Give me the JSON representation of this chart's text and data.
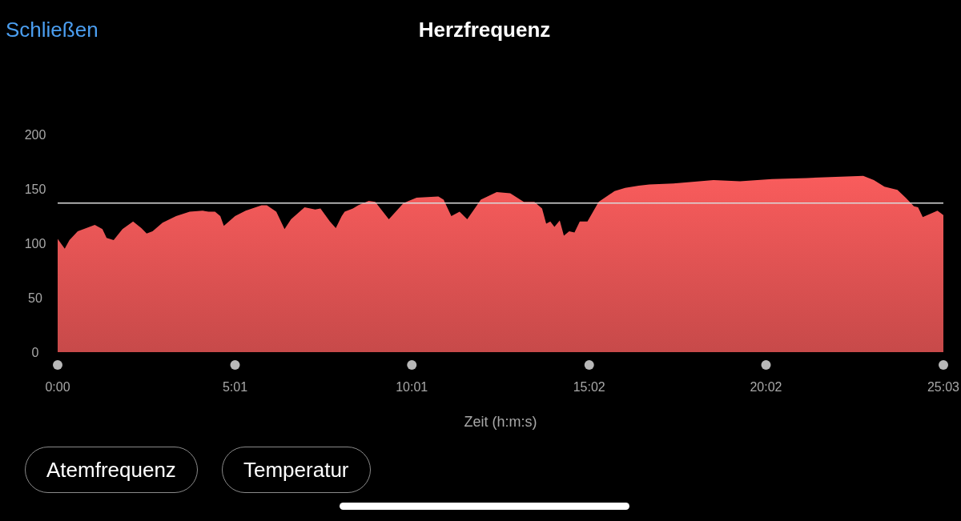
{
  "chart_data": {
    "type": "area",
    "title": "Herzfrequenz",
    "xlabel": "Zeit (h:m:s)",
    "annotations": [
      "Schließen",
      "Atemfrequenz",
      "Temperatur"
    ],
    "x": [
      0,
      12,
      20,
      34,
      63,
      76,
      83,
      95,
      110,
      128,
      142,
      151,
      161,
      178,
      201,
      224,
      246,
      256,
      267,
      276,
      282,
      301,
      319,
      346,
      355,
      371,
      385,
      396,
      419,
      437,
      446,
      462,
      472,
      482,
      487,
      501,
      510,
      528,
      539,
      562,
      587,
      609,
      646,
      655,
      668,
      682,
      695,
      718,
      745,
      768,
      791,
      809,
      822,
      829,
      836,
      843,
      852,
      859,
      868,
      877,
      886,
      899,
      918,
      945,
      963,
      986,
      1004,
      1045,
      1113,
      1158,
      1212,
      1271,
      1367,
      1385,
      1403,
      1425,
      1439,
      1453,
      1460,
      1468,
      1493,
      1503
    ],
    "series": [
      {
        "color": "#f95c5c",
        "values": [
          104,
          95,
          103,
          111,
          117,
          113,
          105,
          103,
          113,
          120,
          114,
          109,
          111,
          119,
          125,
          129,
          130,
          129,
          129,
          125,
          116,
          125,
          130,
          135,
          135,
          129,
          113,
          122,
          133,
          131,
          132,
          120,
          114,
          125,
          129,
          132,
          135,
          139,
          138,
          122,
          137,
          142,
          143,
          140,
          125,
          129,
          122,
          140,
          147,
          146,
          138,
          138,
          132,
          118,
          120,
          115,
          121,
          107,
          111,
          110,
          120,
          120,
          138,
          148,
          151,
          153,
          154,
          155,
          158,
          157,
          159,
          160,
          162,
          158,
          152,
          149,
          142,
          134,
          133,
          124,
          130,
          126
        ]
      }
    ],
    "xlim": [
      0,
      1503
    ],
    "xticks": [
      {
        "value": 0,
        "label": "0:00"
      },
      {
        "value": 301,
        "label": "5:01"
      },
      {
        "value": 601,
        "label": "10:01"
      },
      {
        "value": 902,
        "label": "15:02"
      },
      {
        "value": 1202,
        "label": "20:02"
      },
      {
        "value": 1503,
        "label": "25:03"
      }
    ],
    "ylim": [
      0,
      200
    ],
    "yticks": [
      0,
      50,
      100,
      150,
      200
    ],
    "ref_lines": [
      {
        "axis": "y",
        "value": 137,
        "color": "#d9d9d9"
      }
    ],
    "grid": false,
    "legend": false
  }
}
